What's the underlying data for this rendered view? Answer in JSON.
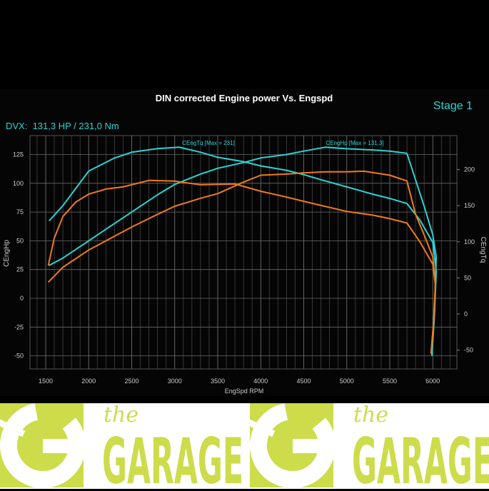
{
  "chart_data": {
    "type": "line",
    "title": "DIN corrected Engine power Vs. Engspd",
    "stage_label": "Stage 1",
    "summary": "DVX:  131,3 HP / 231,0 Nm",
    "xlabel": "EngSpd RPM",
    "ylabel_left": "CEngHp",
    "ylabel_right": "CEngTq",
    "xlim": [
      1300,
      6250
    ],
    "ylim_left": [
      -60,
      145
    ],
    "ylim_right": [
      -70,
      200
    ],
    "x_ticks": [
      1500,
      2000,
      2500,
      3000,
      3500,
      4000,
      4500,
      5000,
      5500,
      6000
    ],
    "y_ticks_left": [
      125,
      100,
      75,
      50,
      25,
      0,
      -25,
      -50
    ],
    "y_ticks_right": [
      200,
      150,
      100,
      50,
      0,
      -50
    ],
    "grid": true,
    "annotations": [
      "CEngTq [Max = 231]",
      "CEngHp [Max = 131.3]"
    ],
    "colors": {
      "tuned": "#2ad4d4",
      "stock": "#f07a1a",
      "background": "#000000",
      "grid": "#6a6a6a"
    },
    "series": [
      {
        "axis": "right",
        "color": "#2ad4d4",
        "x": [
          1540,
          1700,
          2000,
          2300,
          2500,
          2800,
          3050,
          3300,
          3500,
          3800,
          4000,
          4300,
          4500,
          4700,
          5000,
          5300,
          5500,
          5700,
          5850,
          6000,
          6040,
          6020,
          5990
        ],
        "y": [
          129,
          150,
          198,
          216,
          224,
          229,
          231,
          224,
          217,
          211,
          205,
          199,
          193,
          186,
          176,
          166,
          160,
          153,
          130,
          99,
          59,
          0,
          -57
        ]
      },
      {
        "axis": "left",
        "color": "#2ad4d4",
        "x": [
          1540,
          1700,
          2000,
          2300,
          2500,
          2800,
          3000,
          3300,
          3500,
          3800,
          4000,
          4300,
          4500,
          4750,
          5000,
          5300,
          5500,
          5700,
          5800,
          5900,
          6000,
          6040,
          6020,
          5990
        ],
        "y": [
          28.6,
          35,
          50,
          65,
          75,
          90,
          99,
          108,
          113,
          118,
          122,
          125,
          128,
          131.3,
          130,
          129,
          128,
          126,
          103,
          80,
          55,
          36,
          -10,
          -50
        ]
      },
      {
        "axis": "right",
        "color": "#f07a1a",
        "x": [
          1530,
          1600,
          1700,
          1850,
          2000,
          2200,
          2400,
          2700,
          3000,
          3300,
          3700,
          4000,
          4300,
          4500,
          5000,
          5300,
          5500,
          5700,
          5850,
          6000,
          6030,
          6010,
          5980
        ],
        "y": [
          67,
          105,
          135,
          155,
          166,
          173,
          176,
          185,
          184,
          179,
          180,
          170,
          162,
          156,
          142,
          137,
          132,
          126,
          100,
          69,
          40,
          -10,
          -55
        ]
      },
      {
        "axis": "left",
        "color": "#f07a1a",
        "x": [
          1530,
          1700,
          2000,
          2300,
          2500,
          2800,
          3000,
          3300,
          3500,
          3800,
          4000,
          4300,
          4500,
          4750,
          5000,
          5200,
          5500,
          5700,
          5800,
          5900,
          6000,
          6030,
          6010,
          5980
        ],
        "y": [
          14,
          27,
          42,
          54,
          62,
          73,
          80,
          87,
          91,
          101,
          107,
          108,
          109,
          110,
          110,
          110.5,
          107,
          102,
          73,
          55,
          36,
          12,
          -20,
          -48
        ]
      }
    ]
  },
  "footer": {
    "the": "the",
    "garage": "GARAGE"
  }
}
